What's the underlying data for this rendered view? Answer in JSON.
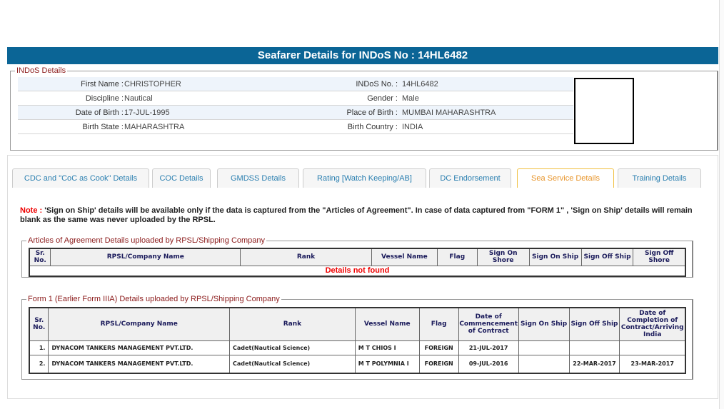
{
  "header": {
    "title": "Seafarer Details for INDoS No : 14HL6482"
  },
  "indos": {
    "legend": "INDoS Details",
    "left": [
      {
        "label": "First Name :",
        "value": "CHRISTOPHER"
      },
      {
        "label": "Discipline :",
        "value": "Nautical"
      },
      {
        "label": "Date of Birth :",
        "value": "17-JUL-1995"
      },
      {
        "label": "Birth State :",
        "value": "MAHARASHTRA"
      }
    ],
    "right": [
      {
        "label": "INDoS No. :",
        "value": "14HL6482"
      },
      {
        "label": "Gender :",
        "value": "Male"
      },
      {
        "label": "Place of Birth :",
        "value": "MUMBAI MAHARASHTRA"
      },
      {
        "label": "Birth Country :",
        "value": "INDIA"
      }
    ]
  },
  "tabs": [
    {
      "label": "CDC and \"CoC as Cook\" Details"
    },
    {
      "label": "COC Details"
    },
    {
      "label": "GMDSS Details"
    },
    {
      "label": "Rating [Watch Keeping/AB]"
    },
    {
      "label": "DC Endorsement"
    },
    {
      "label": "Sea Service Details",
      "active": true
    },
    {
      "label": "Training Details"
    }
  ],
  "note": {
    "label": "Note :",
    "text": " 'Sign on Ship' details will be available only if the data is captured from the \"Articles of Agreement\". In case of data captured from \"FORM 1\" , 'Sign on Ship' details will remain blank as the same was never uploaded by the RPSL."
  },
  "articles": {
    "legend": "Articles of Agreement Details uploaded by RPSL/Shipping Company",
    "columns": [
      "Sr. No.",
      "RPSL/Company Name",
      "Rank",
      "Vessel Name",
      "Flag",
      "Sign On Shore",
      "Sign On Ship",
      "Sign Off Ship",
      "Sign Off Shore"
    ],
    "empty": "Details not found"
  },
  "form1": {
    "legend": "Form 1 (Earlier Form IIIA) Details uploaded by RPSL/Shipping Company",
    "columns": [
      "Sr. No.",
      "RPSL/Company Name",
      "Rank",
      "Vessel Name",
      "Flag",
      "Date of Commencement of Contract",
      "Sign On Ship",
      "Sign Off Ship",
      "Date of Completion of Contract/Arriving India"
    ],
    "rows": [
      [
        "1.",
        "DYNACOM TANKERS MANAGEMENT PVT.LTD.",
        "Cadet(Nautical Science)",
        "M T CHIOS I",
        "FOREIGN",
        "21-JUL-2017",
        "",
        "",
        ""
      ],
      [
        "2.",
        "DYNACOM TANKERS MANAGEMENT PVT.LTD.",
        "Cadet(Nautical Science)",
        "M T POLYMNIA I",
        "FOREIGN",
        "09-JUL-2016",
        "",
        "22-MAR-2017",
        "23-MAR-2017"
      ]
    ]
  }
}
